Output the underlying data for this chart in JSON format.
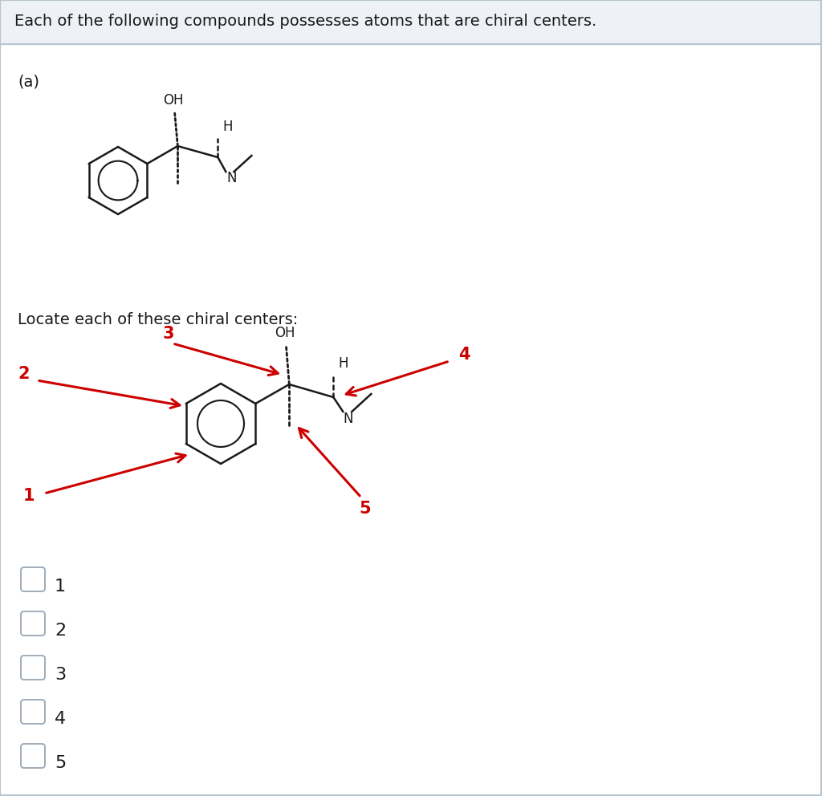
{
  "header_text": "Each of the following compounds possesses atoms that are chiral centers.",
  "label_a": "(a)",
  "locate_text": "Locate each of these chiral centers:",
  "background_color": "#ffffff",
  "header_bg": "#eef2f7",
  "border_color": "#b8c4d0",
  "text_color": "#1a1a1a",
  "checkbox_options": [
    "1",
    "2",
    "3",
    "4",
    "5"
  ],
  "arrow_color": "#cc0000",
  "mol_color": "#1a1a1a",
  "header_fontsize": 14,
  "body_fontsize": 14
}
